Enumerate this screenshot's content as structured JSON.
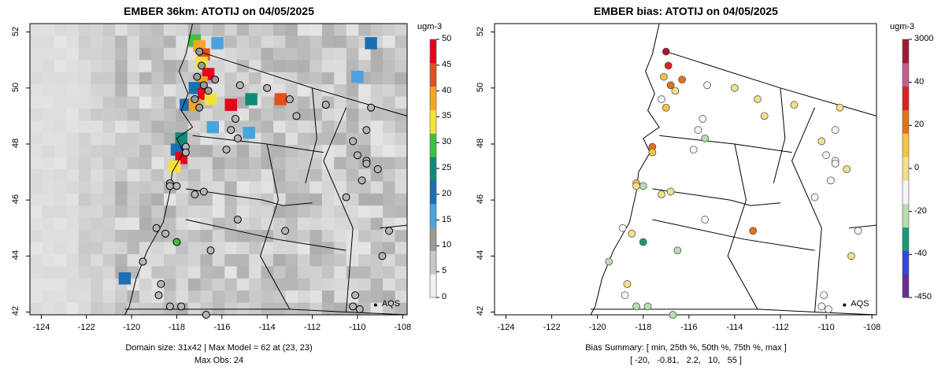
{
  "left": {
    "title": "EMBER 36km: ATOTIJ on 04/05/2025",
    "x_ticks": [
      "-124",
      "-122",
      "-120",
      "-118",
      "-116",
      "-114",
      "-112",
      "-110",
      "-108"
    ],
    "y_ticks": [
      "42",
      "44",
      "46",
      "48",
      "50",
      "52"
    ],
    "colorbar_unit": "ugm-3",
    "colorbar_ticks": [
      "50",
      "45",
      "40",
      "35",
      "30",
      "25",
      "20",
      "15",
      "10",
      "5",
      "0"
    ],
    "legend_label": "AQS",
    "caption_line1": "Domain size: 31x42 | Max Model = 62 at (23, 23)",
    "caption_line2": "Max Obs: 24"
  },
  "right": {
    "title": "EMBER bias: ATOTIJ on 04/05/2025",
    "x_ticks": [
      "-124",
      "-122",
      "-120",
      "-118",
      "-116",
      "-114",
      "-112",
      "-110",
      "-108"
    ],
    "y_ticks": [
      "42",
      "44",
      "46",
      "48",
      "50",
      "52"
    ],
    "colorbar_unit": "ugm-3",
    "colorbar_ticks": [
      "3000",
      "40",
      "20",
      "0",
      "-20",
      "-40",
      "-450"
    ],
    "legend_label": "AQS",
    "caption_line1": "Bias Summary: [ min, 25th %, 50th %, 75th %, max ]",
    "caption_line2": "[ -20,   -0.81,   2.2,   10,   55 ]"
  },
  "colors": {
    "plot_bg": "#d9d9d9",
    "left_scale": [
      "#f2f2f2",
      "#c8c8c8",
      "#9a9a9a",
      "#4aa3df",
      "#1b6fb3",
      "#0f8a7a",
      "#40c040",
      "#f4e23a",
      "#f5a623",
      "#e0521a",
      "#e8001c"
    ],
    "right_scale": [
      "#6a2c91",
      "#3344dd",
      "#1a9a7a",
      "#b7ddb0",
      "#f5f5f5",
      "#f2e08a",
      "#f4c542",
      "#e0721a",
      "#e02020",
      "#c06090",
      "#a01830"
    ]
  }
}
